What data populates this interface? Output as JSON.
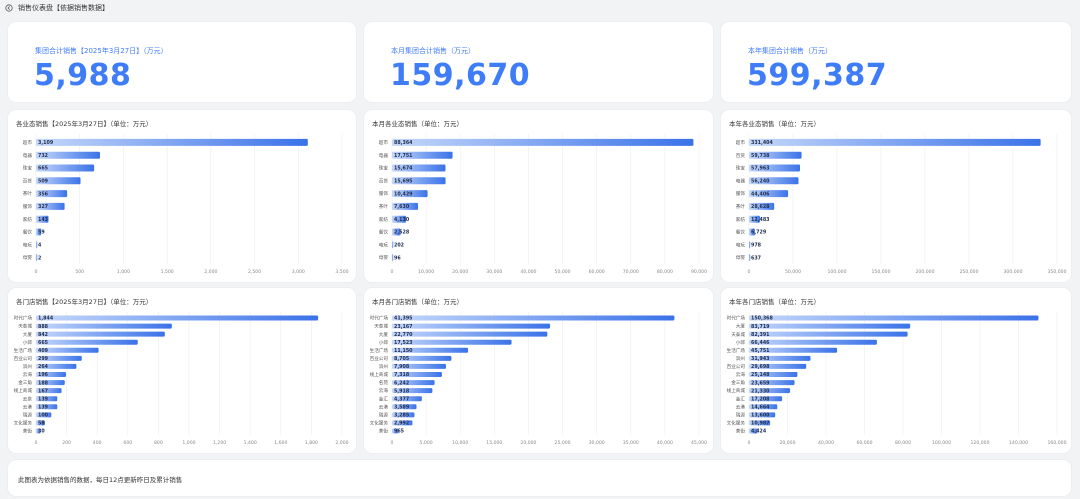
{
  "header": {
    "title": "销售仪表盘【依据销售数据】"
  },
  "kpis": [
    {
      "label": "集团合计销售【2025年3月27日】（万元）",
      "value": "5,988"
    },
    {
      "label": "本月集团合计销售（万元）",
      "value": "159,670"
    },
    {
      "label": "本年集团合计销售（万元）",
      "value": "599,387"
    }
  ],
  "colors": {
    "accent": "#3f7cf7",
    "bar_start": "#c5d8fb",
    "bar_end": "#3a72e8",
    "grid": "#ececec"
  },
  "chart_data": [
    {
      "type": "bar",
      "orientation": "horizontal",
      "title": "各业态销售【2025年3月27日】（单位：万元）",
      "categories": [
        "超市",
        "电器",
        "珠宝",
        "百货",
        "茶叶",
        "服饰",
        "家纺",
        "餐饮",
        "电玩",
        "母婴"
      ],
      "values": [
        3109,
        732,
        665,
        509,
        356,
        327,
        143,
        59,
        4,
        2
      ],
      "labels": [
        "3,109",
        "732",
        "665",
        "509",
        "356",
        "327",
        "143",
        "59",
        "4",
        "2"
      ],
      "xticks": [
        0,
        500,
        1000,
        1500,
        2000,
        2500,
        3000,
        3500
      ],
      "xtick_labels": [
        "0",
        "500",
        "1,000",
        "1,500",
        "2,000",
        "2,500",
        "3,000",
        "3,500"
      ],
      "xlim": [
        0,
        3500
      ]
    },
    {
      "type": "bar",
      "orientation": "horizontal",
      "title": "本月各业态销售（单位：万元）",
      "categories": [
        "超市",
        "电器",
        "珠宝",
        "百货",
        "服饰",
        "茶叶",
        "家纺",
        "餐饮",
        "电玩",
        "母婴"
      ],
      "values": [
        88364,
        17751,
        15674,
        15695,
        10429,
        7630,
        4130,
        2528,
        202,
        96
      ],
      "labels": [
        "88,364",
        "17,751",
        "15,674",
        "15,695",
        "10,429",
        "7,630",
        "4,130",
        "2,528",
        "202",
        "96"
      ],
      "xticks": [
        0,
        10000,
        20000,
        30000,
        40000,
        50000,
        60000,
        70000,
        80000,
        90000
      ],
      "xtick_labels": [
        "0",
        "10,000",
        "20,000",
        "30,000",
        "40,000",
        "50,000",
        "60,000",
        "70,000",
        "80,000",
        "90,000"
      ],
      "xlim": [
        0,
        90000
      ]
    },
    {
      "type": "bar",
      "orientation": "horizontal",
      "title": "本年各业态销售（单位：万元）",
      "categories": [
        "超市",
        "百货",
        "珠宝",
        "电器",
        "服饰",
        "茶叶",
        "家纺",
        "餐饮",
        "电玩",
        "母婴"
      ],
      "values": [
        331404,
        59738,
        57963,
        56240,
        44406,
        28628,
        12483,
        6729,
        978,
        637
      ],
      "labels": [
        "331,404",
        "59,738",
        "57,963",
        "56,240",
        "44,406",
        "28,628",
        "12,483",
        "6,729",
        "978",
        "637"
      ],
      "xticks": [
        0,
        50000,
        100000,
        150000,
        200000,
        250000,
        300000,
        350000
      ],
      "xtick_labels": [
        "0",
        "50,000",
        "100,000",
        "150,000",
        "200,000",
        "250,000",
        "300,000",
        "350,000"
      ],
      "xlim": [
        0,
        350000
      ]
    },
    {
      "type": "bar",
      "orientation": "horizontal",
      "title": "各门店销售【2025年3月27日】（单位：万元）",
      "categories": [
        "时代广场",
        "天泰城",
        "大厦",
        "小郎",
        "生活广场",
        "百业公司",
        "滨州",
        "云海",
        "金三角",
        "线上商城",
        "云泉",
        "云港",
        "瑞源",
        "文化服务",
        "茶街"
      ],
      "values": [
        1844,
        888,
        842,
        665,
        409,
        299,
        264,
        196,
        188,
        167,
        139,
        139,
        100,
        58,
        30
      ],
      "labels": [
        "1,844",
        "888",
        "842",
        "665",
        "409",
        "299",
        "264",
        "196",
        "188",
        "167",
        "139",
        "139",
        "100",
        "58",
        "30"
      ],
      "xticks": [
        0,
        200,
        400,
        600,
        800,
        1000,
        1200,
        1400,
        1600,
        1800,
        2000
      ],
      "xtick_labels": [
        "0",
        "200",
        "400",
        "600",
        "800",
        "1,000",
        "1,200",
        "1,400",
        "1,600",
        "1,800",
        "2,000"
      ],
      "xlim": [
        0,
        2000
      ]
    },
    {
      "type": "bar",
      "orientation": "horizontal",
      "title": "本月各门店销售（单位：万元）",
      "categories": [
        "时代广场",
        "天泰城",
        "大厦",
        "小郎",
        "生活广场",
        "百业公司",
        "滨州",
        "线上商城",
        "名苑",
        "云海",
        "金汇",
        "云港",
        "瑞源",
        "文化服务",
        "茶街"
      ],
      "values": [
        41395,
        23167,
        22770,
        17523,
        11150,
        8705,
        7908,
        7318,
        6242,
        5918,
        4377,
        3589,
        3285,
        2992,
        965
      ],
      "labels": [
        "41,395",
        "23,167",
        "22,770",
        "17,523",
        "11,150",
        "8,705",
        "7,908",
        "7,318",
        "6,242",
        "5,918",
        "4,377",
        "3,589",
        "3,285",
        "2,992",
        "965"
      ],
      "xticks": [
        0,
        5000,
        10000,
        15000,
        20000,
        25000,
        30000,
        35000,
        40000,
        45000
      ],
      "xtick_labels": [
        "0",
        "5,000",
        "10,000",
        "15,000",
        "20,000",
        "25,000",
        "30,000",
        "35,000",
        "40,000",
        "45,000"
      ],
      "xlim": [
        0,
        45000
      ]
    },
    {
      "type": "bar",
      "orientation": "horizontal",
      "title": "本年各门店销售（单位：万元）",
      "categories": [
        "时代广场",
        "大厦",
        "天泰城",
        "小郎",
        "生活广场",
        "滨州",
        "百业公司",
        "云海",
        "金三角",
        "线上商城",
        "金汇",
        "云港",
        "瑞源",
        "文化服务",
        "茶街"
      ],
      "values": [
        150368,
        83719,
        82391,
        66446,
        45751,
        31943,
        29698,
        25148,
        23659,
        21330,
        17208,
        14664,
        13600,
        10987,
        4424
      ],
      "labels": [
        "150,368",
        "83,719",
        "82,391",
        "66,446",
        "45,751",
        "31,943",
        "29,698",
        "25,148",
        "23,659",
        "21,330",
        "17,208",
        "14,664",
        "13,600",
        "10,987",
        "4,424"
      ],
      "xticks": [
        0,
        20000,
        40000,
        60000,
        80000,
        100000,
        120000,
        140000,
        160000
      ],
      "xtick_labels": [
        "0",
        "20,000",
        "40,000",
        "60,000",
        "80,000",
        "100,000",
        "120,000",
        "140,000",
        "160,000"
      ],
      "xlim": [
        0,
        160000
      ]
    }
  ],
  "footer": {
    "note": "此图表为依据销售的数据，每日12点更新昨日及累计销售"
  }
}
